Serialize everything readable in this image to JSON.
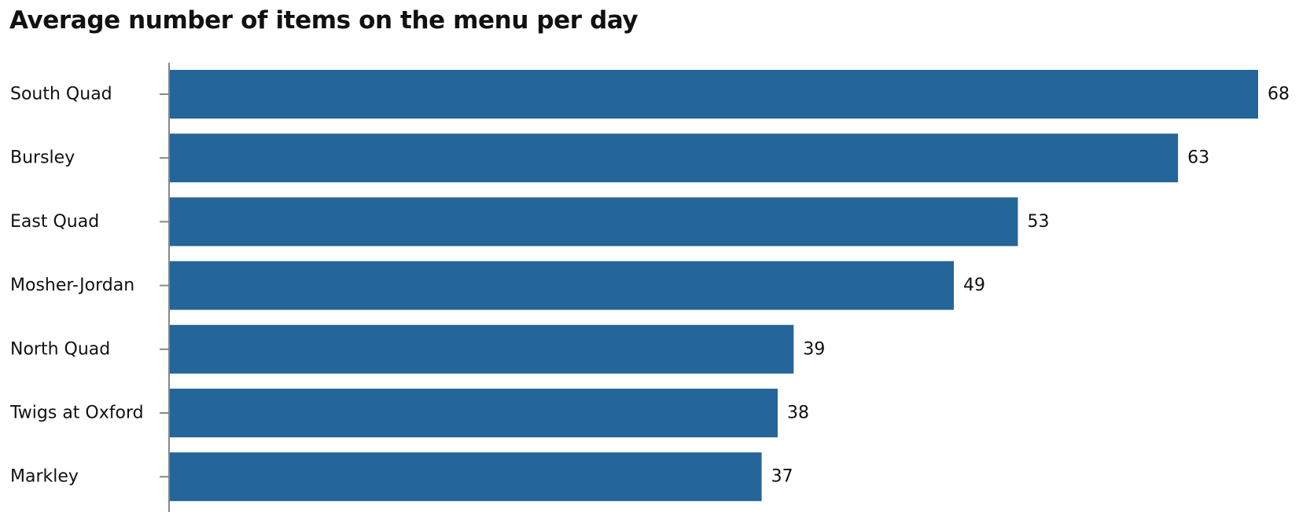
{
  "chart_data": {
    "type": "bar",
    "orientation": "horizontal",
    "title": "Average number of items on the menu per day",
    "categories": [
      "South Quad",
      "Bursley",
      "East Quad",
      "Mosher-Jordan",
      "North Quad",
      "Twigs at Oxford",
      "Markley"
    ],
    "values": [
      68,
      63,
      53,
      49,
      39,
      38,
      37
    ],
    "xlim": [
      0,
      68
    ],
    "grid": false,
    "data_labels": true,
    "bar_color": "#24659a",
    "axis_color": "#888888"
  }
}
